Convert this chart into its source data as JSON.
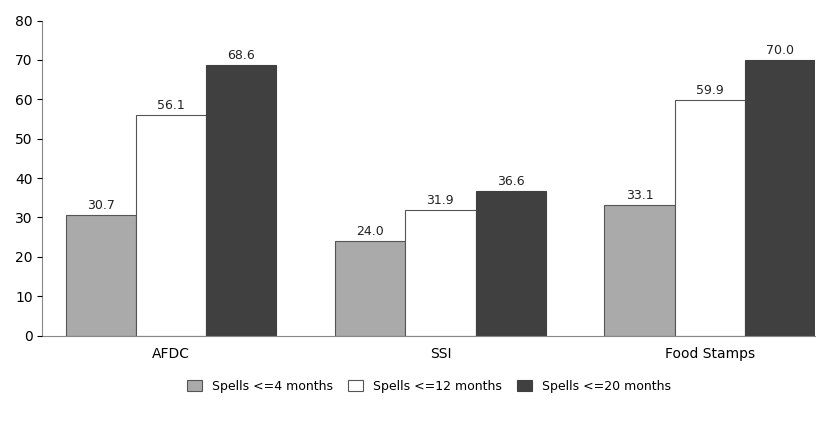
{
  "categories": [
    "AFDC",
    "SSI",
    "Food Stamps"
  ],
  "series": [
    {
      "label": "Spells <=4 months",
      "values": [
        30.7,
        24.0,
        33.1
      ],
      "color": "#aaaaaa",
      "edgecolor": "#555555"
    },
    {
      "label": "Spells <=12 months",
      "values": [
        56.1,
        31.9,
        59.9
      ],
      "color": "#ffffff",
      "edgecolor": "#555555"
    },
    {
      "label": "Spells <=20 months",
      "values": [
        68.6,
        36.6,
        70.0
      ],
      "color": "#404040",
      "edgecolor": "#404040"
    }
  ],
  "ylim": [
    0,
    80
  ],
  "yticks": [
    0,
    10,
    20,
    30,
    40,
    50,
    60,
    70,
    80
  ],
  "bar_width": 0.3,
  "tick_fontsize": 10,
  "legend_fontsize": 9,
  "background_color": "#ffffff",
  "bar_label_fontsize": 9,
  "xlim": [
    -0.55,
    2.75
  ]
}
